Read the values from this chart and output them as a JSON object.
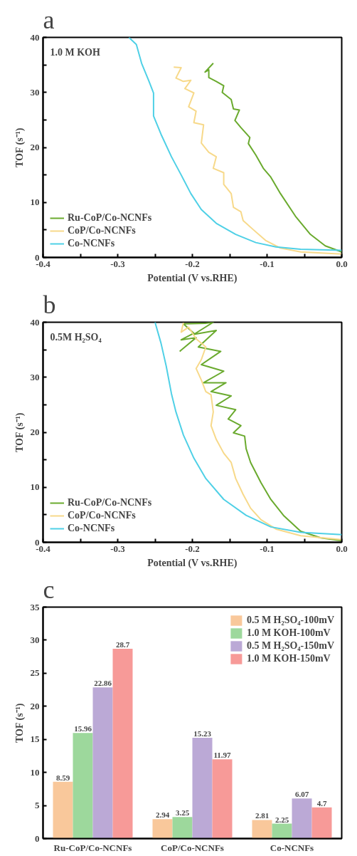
{
  "chart_data": [
    {
      "type": "line",
      "title": "a",
      "xlabel": "Potential (V vs.RHE)",
      "ylabel": "TOF (s⁻¹)",
      "annotations": [
        "1.0 M KOH"
      ],
      "legend": "bottom left",
      "grid": false,
      "xlim": [
        -0.4,
        0.0
      ],
      "ylim": [
        0,
        40
      ],
      "xticks": [
        -0.4,
        {
          "value": -0.35,
          "label": null
        },
        -0.3,
        {
          "value": -0.25,
          "label": null
        },
        -0.2,
        {
          "value": -0.15,
          "label": null
        },
        -0.1,
        {
          "value": -0.05,
          "label": null
        },
        {
          "value": 0,
          "label": "0.0"
        }
      ],
      "yticks": [
        0,
        {
          "value": 5,
          "label": null
        },
        10,
        {
          "value": 15,
          "label": null
        },
        20,
        {
          "value": 25,
          "label": null
        },
        30,
        {
          "value": 35,
          "label": null
        },
        40
      ],
      "series": [
        {
          "name": "Ru-CoP/Co-NCNFs",
          "color": "#6aaa2e",
          "x": [
            -0.172,
            -0.183,
            -0.178,
            -0.178,
            -0.168,
            -0.158,
            -0.16,
            -0.148,
            -0.145,
            -0.137,
            -0.143,
            -0.135,
            -0.123,
            -0.125,
            -0.115,
            -0.105,
            -0.095,
            -0.082,
            -0.062,
            -0.042,
            -0.022,
            0
          ],
          "values": [
            35.3,
            33.7,
            34.1,
            32.7,
            32,
            31.2,
            30,
            28.7,
            27,
            26.8,
            24.9,
            23.6,
            21.8,
            20.7,
            18.6,
            16.2,
            14.6,
            11.6,
            7.5,
            4.2,
            2.1,
            1.0
          ]
        },
        {
          "name": "CoP/Co-NCNFs",
          "color": "#f7d98a",
          "x": [
            -0.225,
            -0.215,
            -0.222,
            -0.212,
            -0.202,
            -0.21,
            -0.198,
            -0.205,
            -0.195,
            -0.198,
            -0.185,
            -0.188,
            -0.178,
            -0.168,
            -0.172,
            -0.158,
            -0.158,
            -0.148,
            -0.145,
            -0.135,
            -0.132,
            -0.118,
            -0.102,
            -0.082,
            -0.055,
            0
          ],
          "values": [
            34.6,
            34.5,
            32.6,
            32,
            32.2,
            30.7,
            29.9,
            27.4,
            26.6,
            24.5,
            24.1,
            20.8,
            19.1,
            18.3,
            16.2,
            15.4,
            13.3,
            11.6,
            9.1,
            8.3,
            6.7,
            5.0,
            3.1,
            1.7,
            1.0,
            0.6
          ]
        },
        {
          "name": "Co-NCNFs",
          "color": "#4fd0e6",
          "x": [
            -0.285,
            -0.275,
            -0.268,
            -0.258,
            -0.252,
            -0.252,
            -0.242,
            -0.228,
            -0.215,
            -0.202,
            -0.188,
            -0.168,
            -0.142,
            -0.115,
            -0.088,
            -0.055,
            0
          ],
          "values": [
            40,
            38.7,
            35.3,
            32,
            29.9,
            25.7,
            22.4,
            18.3,
            15,
            11.6,
            8.7,
            6.2,
            4.2,
            2.7,
            1.9,
            1.5,
            1.3
          ]
        }
      ]
    },
    {
      "type": "line",
      "title": "b",
      "xlabel": "Potential (V vs.RHE)",
      "ylabel": "TOF (s⁻¹)",
      "annotations": [
        "0.5M H₂SO₄"
      ],
      "legend": "bottom left",
      "grid": false,
      "xlim": [
        -0.4,
        0.0
      ],
      "ylim": [
        0,
        40
      ],
      "xticks": [
        -0.4,
        {
          "value": -0.35,
          "label": null
        },
        -0.3,
        {
          "value": -0.25,
          "label": null
        },
        -0.2,
        {
          "value": -0.15,
          "label": null
        },
        -0.1,
        {
          "value": -0.05,
          "label": null
        },
        {
          "value": 0,
          "label": "0.0"
        }
      ],
      "yticks": [
        0,
        {
          "value": 5,
          "label": null
        },
        10,
        {
          "value": 15,
          "label": null
        },
        20,
        {
          "value": 25,
          "label": null
        },
        30,
        {
          "value": 35,
          "label": null
        },
        40
      ],
      "series": [
        {
          "name": "Ru-CoP/Co-NCNFs",
          "color": "#6aaa2e",
          "x": [
            -0.217,
            -0.195,
            -0.215,
            -0.198,
            -0.212,
            -0.183,
            -0.172,
            -0.198,
            -0.168,
            -0.192,
            -0.162,
            -0.188,
            -0.158,
            -0.185,
            -0.155,
            -0.175,
            -0.148,
            -0.168,
            -0.142,
            -0.152,
            -0.135,
            -0.145,
            -0.13,
            -0.128,
            -0.122,
            -0.108,
            -0.095,
            -0.078,
            -0.055,
            -0.028,
            0
          ],
          "values": [
            34.7,
            37.2,
            36.8,
            38,
            39.7,
            39.8,
            40,
            37.8,
            38.5,
            35.5,
            34.7,
            32.3,
            31.1,
            29,
            29,
            27.4,
            26.6,
            24.9,
            24.1,
            22.4,
            21.2,
            19.9,
            19.3,
            17,
            14.5,
            10.8,
            7.8,
            4.9,
            2.0,
            0.8,
            0.3
          ]
        },
        {
          "name": "CoP/Co-NCNFs",
          "color": "#f7d98a",
          "x": [
            -0.212,
            -0.215,
            -0.205,
            -0.195,
            -0.182,
            -0.188,
            -0.195,
            -0.188,
            -0.182,
            -0.175,
            -0.172,
            -0.175,
            -0.168,
            -0.158,
            -0.148,
            -0.142,
            -0.132,
            -0.122,
            -0.108,
            -0.088,
            -0.055,
            0
          ],
          "values": [
            39.9,
            38.2,
            39.1,
            37,
            35.5,
            33.2,
            31.6,
            29.5,
            27.4,
            26.8,
            23.7,
            21.2,
            18.7,
            16.2,
            14.5,
            11.6,
            8.7,
            6.2,
            4.1,
            2.4,
            1.2,
            0.5
          ]
        },
        {
          "name": "Co-NCNFs",
          "color": "#4fd0e6",
          "x": [
            -0.25,
            -0.242,
            -0.235,
            -0.228,
            -0.222,
            -0.212,
            -0.198,
            -0.182,
            -0.158,
            -0.128,
            -0.095,
            -0.055,
            0
          ],
          "values": [
            40,
            36.2,
            32,
            27,
            23.7,
            19.5,
            15.3,
            11.6,
            7.8,
            4.9,
            2.8,
            1.8,
            1.4
          ]
        }
      ]
    },
    {
      "type": "bar",
      "title": "c",
      "ylabel": "TOF (s⁻¹)",
      "legend": "top right",
      "grid": false,
      "data_labels": true,
      "categories": [
        "Ru-CoP/Co-NCNFs",
        "CoP/Co-NCNFs",
        "Co-NCNFs"
      ],
      "ylim": [
        0,
        35
      ],
      "yticks": [
        0,
        5,
        10,
        15,
        20,
        25,
        30,
        35
      ],
      "series": [
        {
          "name": "0.5 M H₂SO₄-100mV",
          "color": "#f9c89b",
          "values": [
            8.59,
            2.94,
            2.81
          ]
        },
        {
          "name": "1.0 M KOH-100mV",
          "color": "#9dd89c",
          "values": [
            15.96,
            3.25,
            2.25
          ]
        },
        {
          "name": "0.5 M H₂SO₄-150mV",
          "color": "#bba9d6",
          "values": [
            22.86,
            15.23,
            6.07
          ]
        },
        {
          "name": "1.0 M KOH-150mV",
          "color": "#f79a98",
          "values": [
            28.7,
            11.97,
            4.7
          ]
        }
      ]
    }
  ]
}
